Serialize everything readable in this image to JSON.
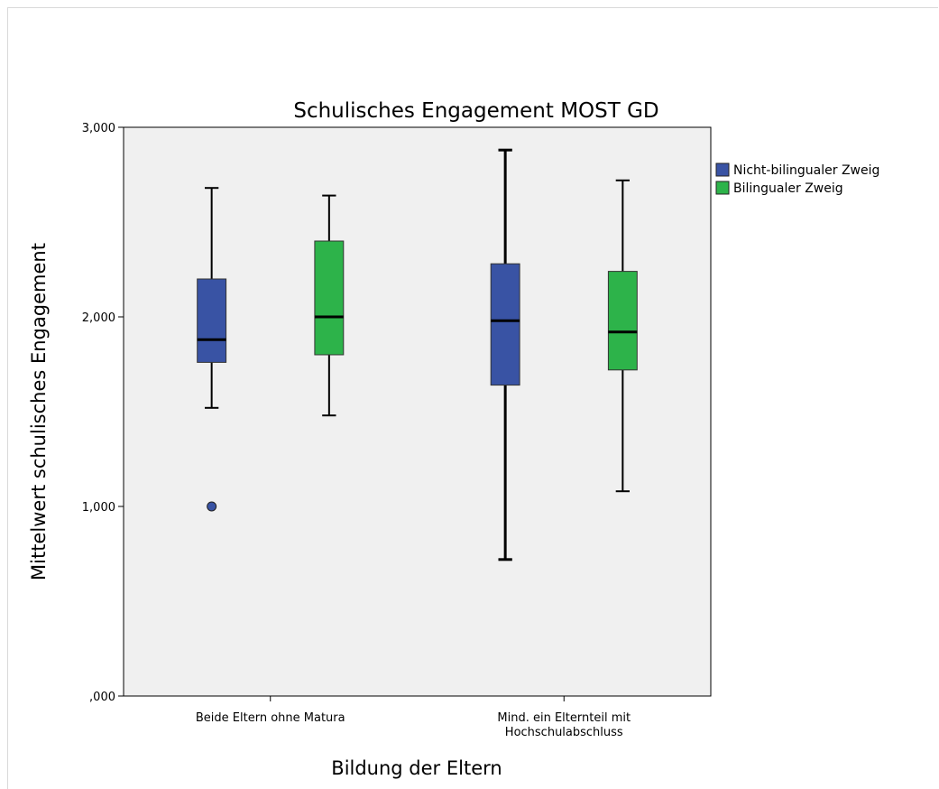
{
  "chart_data": {
    "type": "boxplot",
    "title": "Schulisches Engagement MOST GD",
    "xlabel": "Bildung der Eltern",
    "ylabel": "Mittelwert schulisches Engagement",
    "ylim": [
      0,
      3
    ],
    "yticks": [
      0,
      1,
      2,
      3
    ],
    "ytick_labels": [
      ",000",
      "1,000",
      "2,000",
      "3,000"
    ],
    "grid": false,
    "legend_position": "right",
    "categories": [
      [
        "Beide Eltern ohne Matura"
      ],
      [
        "Mind. ein Elternteil mit",
        "Hochschulabschluss"
      ]
    ],
    "series": [
      {
        "name": "Nicht-bilingualer Zweig",
        "color": "#3953a4",
        "boxes": [
          {
            "min": 1.52,
            "q1": 1.76,
            "median": 1.88,
            "q3": 2.2,
            "max": 2.68,
            "outliers": [
              1.0
            ]
          },
          {
            "min": 0.72,
            "q1": 1.64,
            "median": 1.98,
            "q3": 2.28,
            "max": 2.88,
            "outliers": []
          }
        ]
      },
      {
        "name": "Bilingualer Zweig",
        "color": "#2db34a",
        "boxes": [
          {
            "min": 1.48,
            "q1": 1.8,
            "median": 2.0,
            "q3": 2.4,
            "max": 2.64,
            "outliers": []
          },
          {
            "min": 1.08,
            "q1": 1.72,
            "median": 1.92,
            "q3": 2.24,
            "max": 2.72,
            "outliers": []
          }
        ]
      }
    ]
  }
}
